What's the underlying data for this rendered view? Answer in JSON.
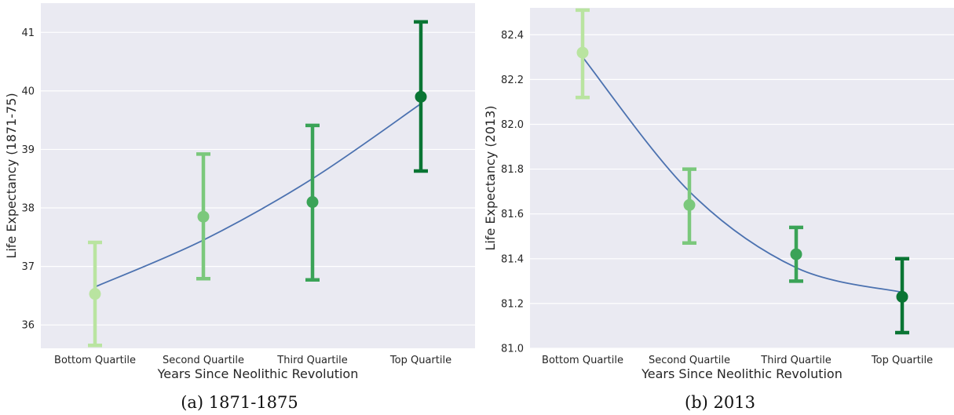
{
  "colors": {
    "background": "#eaeaf2",
    "grid": "#ffffff",
    "fit_line": "#4c72b0",
    "quartile_colors": [
      "#b9e4a0",
      "#7bc87c",
      "#3aa357",
      "#0a7534"
    ]
  },
  "chart_data": [
    {
      "type": "scatter",
      "caption": "(a) 1871-1875",
      "xlabel": "Years Since Neolithic Revolution",
      "ylabel": "Life Expectancy (1871-75)",
      "categories": [
        "Bottom Quartile",
        "Second Quartile",
        "Third Quartile",
        "Top Quartile"
      ],
      "y_ticks": [
        "36",
        "37",
        "38",
        "39",
        "40",
        "41"
      ],
      "ylim": [
        35.6,
        41.5
      ],
      "grid": true,
      "points": [
        {
          "category": "Bottom Quartile",
          "mean": 36.53,
          "ci_low": 35.65,
          "ci_high": 37.41
        },
        {
          "category": "Second Quartile",
          "mean": 37.85,
          "ci_low": 36.79,
          "ci_high": 38.92
        },
        {
          "category": "Third Quartile",
          "mean": 38.1,
          "ci_low": 36.77,
          "ci_high": 39.41
        },
        {
          "category": "Top Quartile",
          "mean": 39.9,
          "ci_low": 38.63,
          "ci_high": 41.18
        }
      ],
      "fit_curve": {
        "x_index": [
          0,
          1,
          2,
          3
        ],
        "y": [
          36.65,
          37.45,
          38.5,
          39.78
        ]
      }
    },
    {
      "type": "scatter",
      "caption": "(b) 2013",
      "xlabel": "Years Since Neolithic Revolution",
      "ylabel": "Life Expectancy (2013)",
      "categories": [
        "Bottom Quartile",
        "Second Quartile",
        "Third Quartile",
        "Top Quartile"
      ],
      "y_ticks": [
        "81.0",
        "81.2",
        "81.4",
        "81.6",
        "81.8",
        "82.0",
        "82.2",
        "82.4"
      ],
      "ylim": [
        81.0,
        82.52
      ],
      "grid": true,
      "points": [
        {
          "category": "Bottom Quartile",
          "mean": 82.32,
          "ci_low": 82.12,
          "ci_high": 82.51
        },
        {
          "category": "Second Quartile",
          "mean": 81.64,
          "ci_low": 81.47,
          "ci_high": 81.8
        },
        {
          "category": "Third Quartile",
          "mean": 81.42,
          "ci_low": 81.3,
          "ci_high": 81.54
        },
        {
          "category": "Top Quartile",
          "mean": 81.23,
          "ci_low": 81.07,
          "ci_high": 81.4
        }
      ],
      "fit_curve": {
        "x_index": [
          0,
          1,
          2,
          3
        ],
        "y": [
          82.3,
          81.7,
          81.36,
          81.25
        ]
      }
    }
  ]
}
